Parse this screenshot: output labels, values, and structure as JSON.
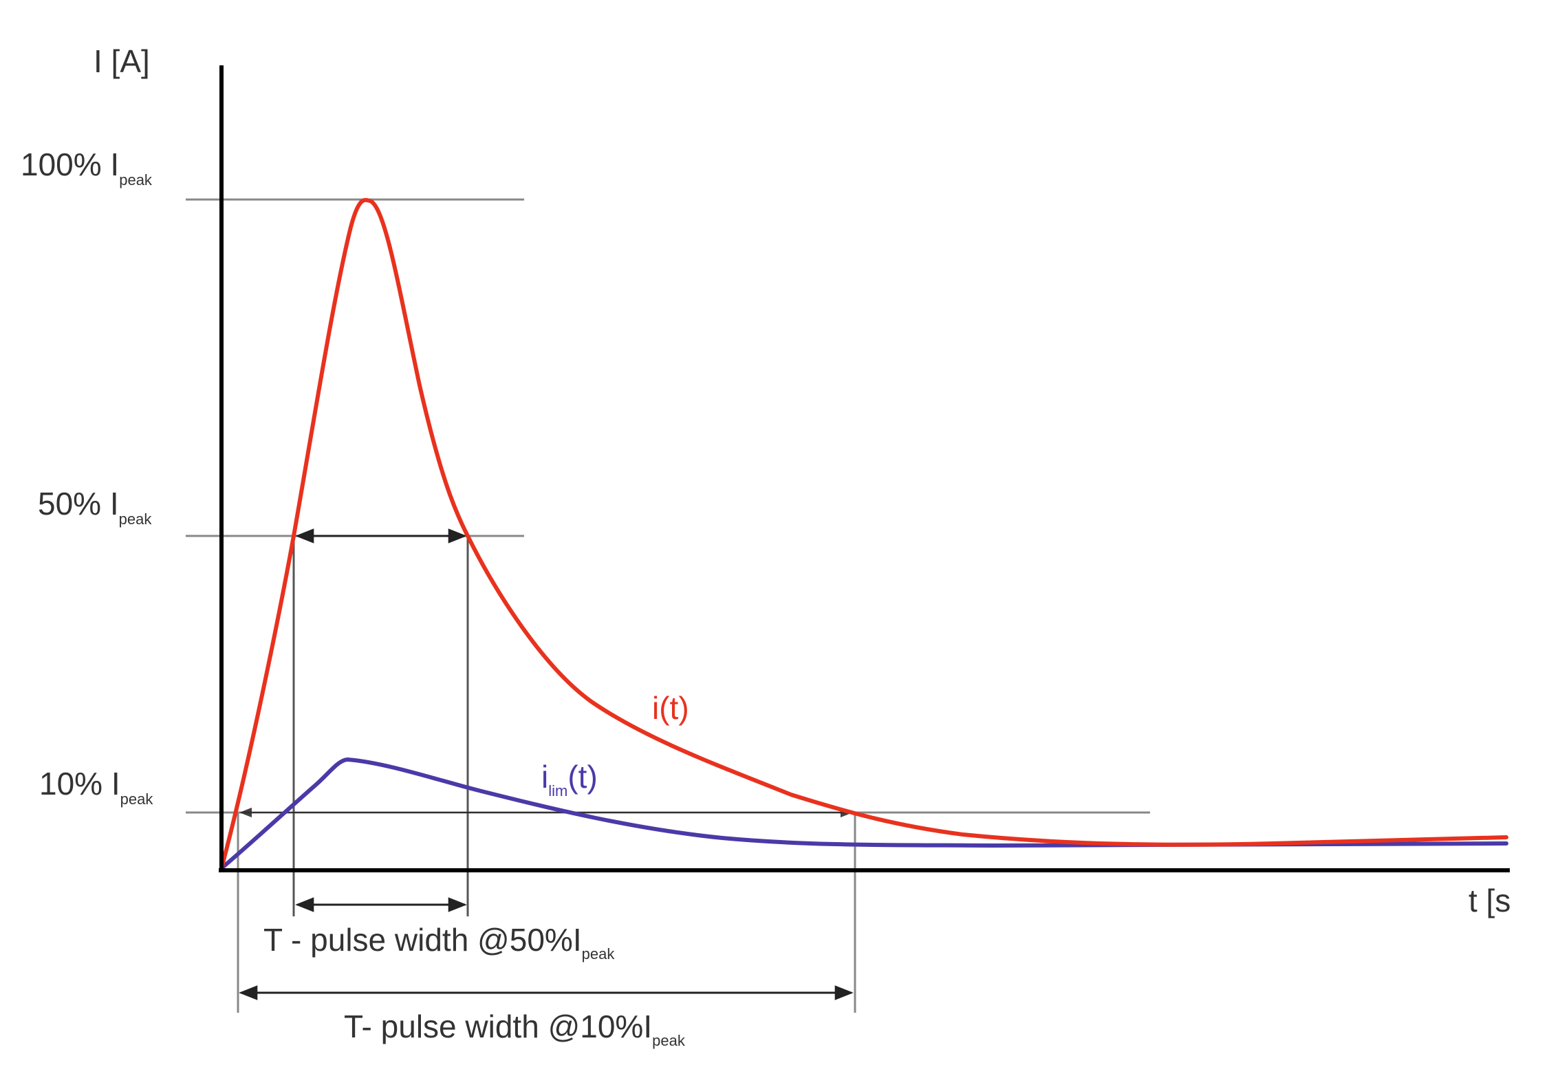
{
  "diagram": {
    "y_axis_label": "I [A]",
    "x_axis_label": "t [s",
    "levels": [
      {
        "percent_text": "100% I",
        "subscript": "peak"
      },
      {
        "percent_text": "50% I",
        "subscript": "peak"
      },
      {
        "percent_text": "10% I",
        "subscript": "peak"
      }
    ],
    "curves": [
      {
        "label_main": "i",
        "label_sub": "",
        "label_suffix": "(t)",
        "color": "#e8321e"
      },
      {
        "label_main": "i",
        "label_sub": "lim",
        "label_suffix": "(t)",
        "color": "#4a3aa8"
      }
    ],
    "pulse_widths": [
      {
        "text": "T - pulse width @50%I",
        "subscript": "peak"
      },
      {
        "text": "T- pulse width @10%I",
        "subscript": "peak"
      }
    ],
    "colors": {
      "axis": "#000000",
      "guide": "#888888",
      "arrow": "#222222",
      "text": "#333333"
    }
  }
}
